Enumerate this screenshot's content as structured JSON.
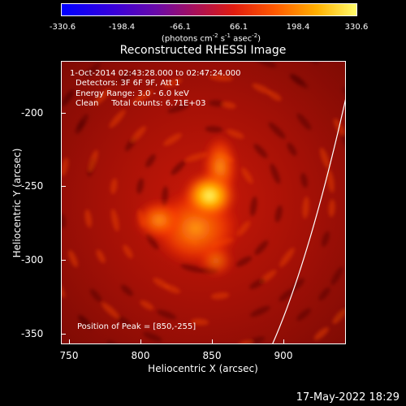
{
  "colorbar": {
    "tick_labels": [
      "-330.6",
      "-198.4",
      "-66.1",
      "66.1",
      "198.4",
      "330.6"
    ],
    "unit_label": "(photons cm",
    "unit_sup1": "-2",
    "unit_mid": " s",
    "unit_sup2": "-1",
    "unit_mid2": " asec",
    "unit_sup3": "-2",
    "unit_end": ")"
  },
  "plot": {
    "title": "Reconstructed RHESSI Image",
    "info_time": "1-Oct-2014 02:43:28.000 to 02:47:24.000",
    "info_detectors": "Detectors: 3F 6F 9F, Att 1",
    "info_energy": "Energy Range: 3.0 - 6.0 keV",
    "info_clean": "Clean     Total counts: 6.71E+03",
    "peak_text": "Position of Peak = [850,-255]",
    "xlabel": "Heliocentric X (arcsec)",
    "ylabel": "Heliocentric Y (arcsec)",
    "x_ticks": [
      "750",
      "800",
      "850",
      "900"
    ],
    "y_ticks": [
      "-200",
      "-250",
      "-300",
      "-350"
    ]
  },
  "footer": {
    "date": "17-May-2022 18:29"
  }
}
